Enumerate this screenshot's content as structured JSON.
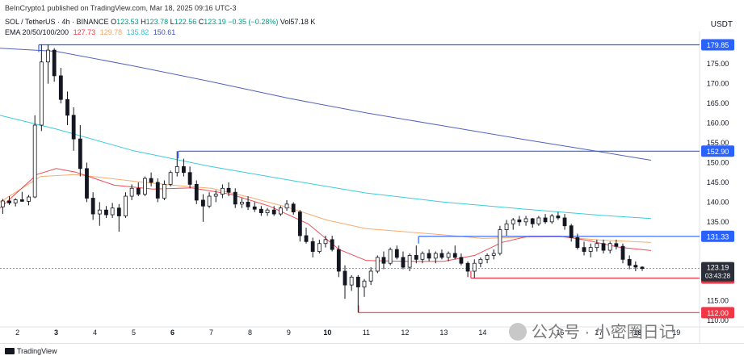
{
  "header": {
    "published": "BeInCrypto1 published on TradingView.com, Mar 18, 2025 09:16 UTC-3",
    "symbol": "SOL / TetherUS · 4h · BINANCE",
    "open_label": "O",
    "open": "123.53",
    "high_label": "H",
    "high": "123.78",
    "low_label": "L",
    "low": "122.56",
    "close_label": "C",
    "close": "123.19",
    "change": "−0.35 (−0.28%)",
    "vol": "Vol57.18 K",
    "ema_label": "EMA 20/50/100/200",
    "ema20": "127.73",
    "ema50": "129.78",
    "ema100": "135.82",
    "ema200": "150.61",
    "currency": "USDT"
  },
  "colors": {
    "up": "#089981",
    "down": "#131722",
    "ema20": "#f23645",
    "ema50": "#f7a35c",
    "ema100": "#26c6da",
    "ema200": "#3f51b5",
    "resistance": "#2962ff",
    "support": "#f23645"
  },
  "footer": {
    "brand": "TradingView"
  },
  "watermark": {
    "text": "公众号 · 小密圈日记",
    "icon": "wechat-icon"
  },
  "chart_data": {
    "type": "candlestick",
    "y_unit": "USDT",
    "ylim": [
      109,
      182
    ],
    "y_ticks": [
      110,
      115,
      120,
      125,
      130,
      135,
      140,
      145,
      150,
      155,
      160,
      165,
      170,
      175,
      180
    ],
    "x_ticks": [
      "2",
      "3",
      "4",
      "5",
      "6",
      "7",
      "8",
      "9",
      "10",
      "11",
      "12",
      "13",
      "14",
      "15",
      "16",
      "17",
      "18",
      "19"
    ],
    "x_tick_bold": [
      "3",
      "6",
      "10",
      "15",
      "18"
    ],
    "x_range": [
      1.55,
      19.6
    ],
    "levels": [
      {
        "price": 179.85,
        "label": "179.85",
        "kind": "resistance",
        "x_start": 2.55
      },
      {
        "price": 152.9,
        "label": "152.90",
        "kind": "resistance",
        "x_start": 6.15
      },
      {
        "price": 131.33,
        "label": "131.33",
        "kind": "resistance",
        "x_start": 12.35
      },
      {
        "price": 120.76,
        "label": "120.76",
        "kind": "support",
        "x_start": 13.7
      },
      {
        "price": 112.0,
        "label": "112.00",
        "kind": "support",
        "x_start": 10.8
      }
    ],
    "last_price": {
      "price": 123.19,
      "label": "123.19",
      "countdown": "03:43:28"
    },
    "ema": {
      "ema200": [
        [
          1.55,
          179.0
        ],
        [
          3,
          178.2
        ],
        [
          5,
          174.5
        ],
        [
          7,
          170.5
        ],
        [
          9,
          166.3
        ],
        [
          11,
          162.6
        ],
        [
          13,
          159.3
        ],
        [
          15,
          156.0
        ],
        [
          17,
          152.8
        ],
        [
          18.35,
          150.61
        ]
      ],
      "ema100": [
        [
          1.55,
          162.0
        ],
        [
          3,
          158.5
        ],
        [
          5,
          153.0
        ],
        [
          7,
          149.0
        ],
        [
          9,
          145.6
        ],
        [
          11,
          142.3
        ],
        [
          13,
          140.0
        ],
        [
          15,
          138.3
        ],
        [
          17,
          136.7
        ],
        [
          18.35,
          135.82
        ]
      ],
      "ema50": [
        [
          1.55,
          140.0
        ],
        [
          2.6,
          146.5
        ],
        [
          3.5,
          147.0
        ],
        [
          5,
          145.3
        ],
        [
          6,
          144.3
        ],
        [
          7,
          143.5
        ],
        [
          8,
          141.2
        ],
        [
          9,
          138.6
        ],
        [
          10,
          135.4
        ],
        [
          11,
          133.3
        ],
        [
          12,
          132.5
        ],
        [
          13,
          131.7
        ],
        [
          14,
          130.8
        ],
        [
          15,
          131.1
        ],
        [
          16,
          131.2
        ],
        [
          17,
          130.4
        ],
        [
          18.35,
          129.78
        ]
      ],
      "ema20": [
        [
          1.55,
          138.5
        ],
        [
          2.5,
          147.0
        ],
        [
          3.0,
          148.5
        ],
        [
          3.5,
          147.6
        ],
        [
          4.5,
          144.3
        ],
        [
          5.5,
          143.3
        ],
        [
          6.5,
          143.6
        ],
        [
          7.5,
          142.0
        ],
        [
          8.5,
          139.0
        ],
        [
          9.5,
          134.5
        ],
        [
          10.3,
          128.0
        ],
        [
          11,
          125.2
        ],
        [
          12,
          125.0
        ],
        [
          13,
          125.0
        ],
        [
          13.8,
          126.5
        ],
        [
          14.5,
          129.8
        ],
        [
          15.2,
          131.4
        ],
        [
          16,
          131.4
        ],
        [
          16.7,
          130.3
        ],
        [
          17.5,
          128.6
        ],
        [
          18.35,
          127.73
        ]
      ]
    },
    "candles": [
      {
        "x": 1.62,
        "o": 138.8,
        "h": 140.8,
        "l": 137.0,
        "c": 140.3
      },
      {
        "x": 1.79,
        "o": 140.3,
        "h": 141.5,
        "l": 139.3,
        "c": 139.8
      },
      {
        "x": 1.95,
        "o": 139.8,
        "h": 141.0,
        "l": 138.9,
        "c": 140.6
      },
      {
        "x": 2.12,
        "o": 140.6,
        "h": 142.6,
        "l": 140.1,
        "c": 140.2
      },
      {
        "x": 2.29,
        "o": 140.2,
        "h": 141.8,
        "l": 139.2,
        "c": 141.3
      },
      {
        "x": 2.45,
        "o": 141.3,
        "h": 162.0,
        "l": 141.0,
        "c": 159.5
      },
      {
        "x": 2.62,
        "o": 159.5,
        "h": 179.9,
        "l": 158.0,
        "c": 175.5
      },
      {
        "x": 2.79,
        "o": 175.5,
        "h": 179.85,
        "l": 170.0,
        "c": 178.5
      },
      {
        "x": 2.95,
        "o": 178.5,
        "h": 179.0,
        "l": 170.5,
        "c": 172.0
      },
      {
        "x": 3.12,
        "o": 172.0,
        "h": 174.0,
        "l": 165.0,
        "c": 166.0
      },
      {
        "x": 3.29,
        "o": 166.0,
        "h": 168.0,
        "l": 159.5,
        "c": 162.0
      },
      {
        "x": 3.45,
        "o": 162.0,
        "h": 164.0,
        "l": 153.0,
        "c": 156.0
      },
      {
        "x": 3.62,
        "o": 156.0,
        "h": 159.5,
        "l": 146.5,
        "c": 148.5
      },
      {
        "x": 3.79,
        "o": 148.5,
        "h": 150.0,
        "l": 140.0,
        "c": 141.0
      },
      {
        "x": 3.95,
        "o": 141.0,
        "h": 142.5,
        "l": 135.5,
        "c": 137.0
      },
      {
        "x": 4.12,
        "o": 137.0,
        "h": 140.0,
        "l": 134.0,
        "c": 138.0
      },
      {
        "x": 4.29,
        "o": 138.0,
        "h": 139.0,
        "l": 136.0,
        "c": 136.8
      },
      {
        "x": 4.45,
        "o": 136.8,
        "h": 139.8,
        "l": 136.0,
        "c": 138.5
      },
      {
        "x": 4.62,
        "o": 138.5,
        "h": 139.5,
        "l": 132.5,
        "c": 136.5
      },
      {
        "x": 4.79,
        "o": 136.5,
        "h": 142.5,
        "l": 136.0,
        "c": 141.5
      },
      {
        "x": 4.95,
        "o": 141.5,
        "h": 144.5,
        "l": 140.5,
        "c": 143.5
      },
      {
        "x": 5.12,
        "o": 143.5,
        "h": 145.0,
        "l": 141.5,
        "c": 142.0
      },
      {
        "x": 5.29,
        "o": 142.0,
        "h": 146.5,
        "l": 141.5,
        "c": 146.0
      },
      {
        "x": 5.45,
        "o": 146.0,
        "h": 147.5,
        "l": 144.0,
        "c": 145.0
      },
      {
        "x": 5.62,
        "o": 145.0,
        "h": 146.0,
        "l": 140.0,
        "c": 141.0
      },
      {
        "x": 5.79,
        "o": 141.0,
        "h": 145.5,
        "l": 140.5,
        "c": 144.5
      },
      {
        "x": 5.95,
        "o": 144.5,
        "h": 148.0,
        "l": 144.0,
        "c": 147.5
      },
      {
        "x": 6.12,
        "o": 147.5,
        "h": 152.9,
        "l": 146.5,
        "c": 149.0
      },
      {
        "x": 6.29,
        "o": 149.0,
        "h": 151.0,
        "l": 146.5,
        "c": 147.5
      },
      {
        "x": 6.45,
        "o": 147.5,
        "h": 149.0,
        "l": 143.5,
        "c": 144.5
      },
      {
        "x": 6.62,
        "o": 144.5,
        "h": 145.5,
        "l": 139.5,
        "c": 140.5
      },
      {
        "x": 6.79,
        "o": 140.5,
        "h": 142.0,
        "l": 135.0,
        "c": 139.0
      },
      {
        "x": 6.95,
        "o": 139.0,
        "h": 142.5,
        "l": 138.5,
        "c": 141.5
      },
      {
        "x": 7.12,
        "o": 141.5,
        "h": 143.0,
        "l": 140.0,
        "c": 142.0
      },
      {
        "x": 7.29,
        "o": 142.0,
        "h": 144.5,
        "l": 141.0,
        "c": 143.5
      },
      {
        "x": 7.45,
        "o": 143.5,
        "h": 145.0,
        "l": 141.5,
        "c": 142.5
      },
      {
        "x": 7.62,
        "o": 142.5,
        "h": 143.5,
        "l": 138.5,
        "c": 139.5
      },
      {
        "x": 7.79,
        "o": 139.5,
        "h": 141.0,
        "l": 138.5,
        "c": 140.0
      },
      {
        "x": 7.95,
        "o": 140.0,
        "h": 141.5,
        "l": 138.0,
        "c": 138.8
      },
      {
        "x": 8.12,
        "o": 138.8,
        "h": 140.0,
        "l": 137.5,
        "c": 138.2
      },
      {
        "x": 8.29,
        "o": 138.2,
        "h": 139.0,
        "l": 136.5,
        "c": 137.3
      },
      {
        "x": 8.45,
        "o": 137.3,
        "h": 138.5,
        "l": 136.5,
        "c": 138.0
      },
      {
        "x": 8.62,
        "o": 138.0,
        "h": 139.0,
        "l": 136.5,
        "c": 137.0
      },
      {
        "x": 8.79,
        "o": 137.0,
        "h": 139.0,
        "l": 136.5,
        "c": 138.5
      },
      {
        "x": 8.95,
        "o": 138.5,
        "h": 140.5,
        "l": 137.8,
        "c": 139.5
      },
      {
        "x": 9.12,
        "o": 139.5,
        "h": 140.0,
        "l": 136.8,
        "c": 137.5
      },
      {
        "x": 9.29,
        "o": 137.5,
        "h": 138.0,
        "l": 130.0,
        "c": 131.5
      },
      {
        "x": 9.45,
        "o": 131.5,
        "h": 133.5,
        "l": 129.5,
        "c": 130.0
      },
      {
        "x": 9.62,
        "o": 130.0,
        "h": 131.0,
        "l": 126.0,
        "c": 127.5
      },
      {
        "x": 9.79,
        "o": 127.5,
        "h": 130.5,
        "l": 127.0,
        "c": 129.5
      },
      {
        "x": 9.95,
        "o": 129.5,
        "h": 131.5,
        "l": 128.5,
        "c": 130.5
      },
      {
        "x": 10.12,
        "o": 130.5,
        "h": 131.5,
        "l": 127.5,
        "c": 128.0
      },
      {
        "x": 10.29,
        "o": 128.0,
        "h": 129.0,
        "l": 121.0,
        "c": 122.5
      },
      {
        "x": 10.45,
        "o": 122.5,
        "h": 124.0,
        "l": 115.5,
        "c": 119.0
      },
      {
        "x": 10.62,
        "o": 119.0,
        "h": 121.5,
        "l": 117.5,
        "c": 121.0
      },
      {
        "x": 10.79,
        "o": 121.0,
        "h": 121.5,
        "l": 112.0,
        "c": 118.5
      },
      {
        "x": 10.95,
        "o": 118.5,
        "h": 120.5,
        "l": 116.0,
        "c": 120.0
      },
      {
        "x": 11.12,
        "o": 120.0,
        "h": 123.5,
        "l": 119.0,
        "c": 122.5
      },
      {
        "x": 11.29,
        "o": 122.5,
        "h": 126.5,
        "l": 122.0,
        "c": 126.0
      },
      {
        "x": 11.45,
        "o": 126.0,
        "h": 127.5,
        "l": 123.0,
        "c": 124.5
      },
      {
        "x": 11.62,
        "o": 124.5,
        "h": 128.5,
        "l": 124.0,
        "c": 128.0
      },
      {
        "x": 11.79,
        "o": 128.0,
        "h": 129.0,
        "l": 125.5,
        "c": 126.0
      },
      {
        "x": 11.95,
        "o": 126.0,
        "h": 127.5,
        "l": 123.0,
        "c": 123.5
      },
      {
        "x": 12.12,
        "o": 123.5,
        "h": 127.0,
        "l": 122.5,
        "c": 126.5
      },
      {
        "x": 12.29,
        "o": 126.5,
        "h": 129.0,
        "l": 124.5,
        "c": 125.5
      },
      {
        "x": 12.45,
        "o": 125.5,
        "h": 127.5,
        "l": 124.5,
        "c": 127.0
      },
      {
        "x": 12.62,
        "o": 127.0,
        "h": 128.0,
        "l": 125.0,
        "c": 125.8
      },
      {
        "x": 12.79,
        "o": 125.8,
        "h": 127.5,
        "l": 124.5,
        "c": 127.0
      },
      {
        "x": 12.95,
        "o": 127.0,
        "h": 128.0,
        "l": 125.5,
        "c": 126.0
      },
      {
        "x": 13.12,
        "o": 126.0,
        "h": 127.5,
        "l": 125.0,
        "c": 127.0
      },
      {
        "x": 13.29,
        "o": 127.0,
        "h": 129.0,
        "l": 125.5,
        "c": 126.0
      },
      {
        "x": 13.45,
        "o": 126.0,
        "h": 127.0,
        "l": 124.0,
        "c": 124.5
      },
      {
        "x": 13.62,
        "o": 124.5,
        "h": 125.0,
        "l": 121.0,
        "c": 122.5
      },
      {
        "x": 13.79,
        "o": 122.5,
        "h": 125.5,
        "l": 120.76,
        "c": 124.5
      },
      {
        "x": 13.95,
        "o": 124.5,
        "h": 126.0,
        "l": 123.5,
        "c": 125.5
      },
      {
        "x": 14.12,
        "o": 125.5,
        "h": 127.0,
        "l": 124.5,
        "c": 126.5
      },
      {
        "x": 14.29,
        "o": 126.5,
        "h": 128.0,
        "l": 125.5,
        "c": 127.0
      },
      {
        "x": 14.45,
        "o": 127.0,
        "h": 134.0,
        "l": 126.5,
        "c": 133.0
      },
      {
        "x": 14.62,
        "o": 133.0,
        "h": 135.5,
        "l": 131.5,
        "c": 134.5
      },
      {
        "x": 14.79,
        "o": 134.5,
        "h": 136.0,
        "l": 133.0,
        "c": 135.5
      },
      {
        "x": 14.95,
        "o": 135.5,
        "h": 136.5,
        "l": 134.0,
        "c": 135.0
      },
      {
        "x": 15.12,
        "o": 135.0,
        "h": 136.5,
        "l": 134.0,
        "c": 135.8
      },
      {
        "x": 15.29,
        "o": 135.8,
        "h": 136.0,
        "l": 133.5,
        "c": 134.5
      },
      {
        "x": 15.45,
        "o": 134.5,
        "h": 136.5,
        "l": 134.0,
        "c": 136.0
      },
      {
        "x": 15.62,
        "o": 136.0,
        "h": 137.0,
        "l": 134.5,
        "c": 135.0
      },
      {
        "x": 15.79,
        "o": 135.0,
        "h": 137.0,
        "l": 134.5,
        "c": 136.5
      },
      {
        "x": 15.95,
        "o": 136.5,
        "h": 137.5,
        "l": 135.5,
        "c": 136.0
      },
      {
        "x": 16.12,
        "o": 136.0,
        "h": 137.0,
        "l": 133.0,
        "c": 134.0
      },
      {
        "x": 16.29,
        "o": 134.0,
        "h": 134.5,
        "l": 130.0,
        "c": 131.0
      },
      {
        "x": 16.45,
        "o": 131.0,
        "h": 132.0,
        "l": 128.0,
        "c": 128.5
      },
      {
        "x": 16.62,
        "o": 128.5,
        "h": 130.0,
        "l": 126.5,
        "c": 127.5
      },
      {
        "x": 16.79,
        "o": 127.5,
        "h": 129.5,
        "l": 126.0,
        "c": 128.5
      },
      {
        "x": 16.95,
        "o": 128.5,
        "h": 130.5,
        "l": 127.5,
        "c": 129.5
      },
      {
        "x": 17.12,
        "o": 129.5,
        "h": 130.5,
        "l": 127.0,
        "c": 127.8
      },
      {
        "x": 17.29,
        "o": 127.8,
        "h": 130.0,
        "l": 127.0,
        "c": 129.5
      },
      {
        "x": 17.45,
        "o": 129.5,
        "h": 130.5,
        "l": 128.0,
        "c": 128.8
      },
      {
        "x": 17.62,
        "o": 128.8,
        "h": 129.5,
        "l": 124.5,
        "c": 125.5
      },
      {
        "x": 17.79,
        "o": 125.5,
        "h": 126.5,
        "l": 123.0,
        "c": 124.0
      },
      {
        "x": 17.95,
        "o": 124.0,
        "h": 125.0,
        "l": 122.5,
        "c": 123.53
      },
      {
        "x": 18.12,
        "o": 123.53,
        "h": 123.78,
        "l": 122.56,
        "c": 123.19
      }
    ]
  }
}
